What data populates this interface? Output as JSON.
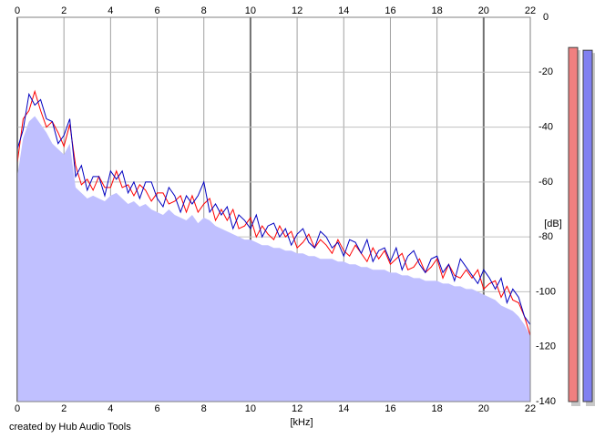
{
  "chart_data": {
    "type": "spectrum",
    "x_label": "[kHz]",
    "y_label": "[dB]",
    "credit": "created by Hub Audio Tools",
    "xlim": [
      0,
      22
    ],
    "xticks": [
      0,
      2,
      4,
      6,
      8,
      10,
      12,
      14,
      16,
      18,
      20,
      22
    ],
    "ylim": [
      -140,
      0
    ],
    "yticks": [
      0,
      -20,
      -40,
      -60,
      -80,
      -100,
      -120,
      -140
    ],
    "grid": true,
    "x": [
      0,
      0.25,
      0.5,
      0.75,
      1,
      1.25,
      1.5,
      1.75,
      2,
      2.25,
      2.5,
      2.75,
      3,
      3.25,
      3.5,
      3.75,
      4,
      4.25,
      4.5,
      4.75,
      5,
      5.25,
      5.5,
      5.75,
      6,
      6.25,
      6.5,
      6.75,
      7,
      7.25,
      7.5,
      7.75,
      8,
      8.25,
      8.5,
      8.75,
      9,
      9.25,
      9.5,
      9.75,
      10,
      10.25,
      10.5,
      10.75,
      11,
      11.25,
      11.5,
      11.75,
      12,
      12.25,
      12.5,
      12.75,
      13,
      13.25,
      13.5,
      13.75,
      14,
      14.25,
      14.5,
      14.75,
      15,
      15.25,
      15.5,
      15.75,
      16,
      16.25,
      16.5,
      16.75,
      17,
      17.25,
      17.5,
      17.75,
      18,
      18.25,
      18.5,
      18.75,
      19,
      19.25,
      19.5,
      19.75,
      20,
      20.25,
      20.5,
      20.75,
      21,
      21.25,
      21.5,
      21.75,
      22
    ],
    "series": [
      {
        "color": "#c0c0ff",
        "fill": true,
        "values": [
          -58,
          -44,
          -38,
          -36,
          -39,
          -42,
          -46,
          -48,
          -50,
          -46,
          -62,
          -64,
          -66,
          -65,
          -66,
          -67,
          -65,
          -64,
          -66,
          -68,
          -67,
          -69,
          -68,
          -70,
          -71,
          -72,
          -70,
          -72,
          -73,
          -74,
          -72,
          -75,
          -73,
          -74,
          -76,
          -77,
          -78,
          -79,
          -80,
          -81,
          -81,
          -82,
          -83,
          -83,
          -84,
          -84,
          -85,
          -85,
          -86,
          -86,
          -87,
          -87,
          -88,
          -88,
          -88,
          -89,
          -89,
          -90,
          -90,
          -91,
          -91,
          -92,
          -92,
          -92,
          -93,
          -93,
          -94,
          -94,
          -95,
          -95,
          -96,
          -96,
          -96,
          -97,
          -97,
          -98,
          -98,
          -99,
          -99,
          -100,
          -101,
          -102,
          -103,
          -105,
          -106,
          -107,
          -109,
          -112,
          -116
        ]
      },
      {
        "color": "#ff0000",
        "values": [
          -53,
          -37,
          -34,
          -27,
          -34,
          -40,
          -38,
          -42,
          -47,
          -39,
          -54,
          -61,
          -59,
          -63,
          -58,
          -62,
          -62,
          -56,
          -62,
          -61,
          -65,
          -61,
          -63,
          -67,
          -64,
          -64,
          -68,
          -67,
          -65,
          -71,
          -65,
          -71,
          -68,
          -66,
          -74,
          -70,
          -74,
          -70,
          -77,
          -76,
          -73,
          -80,
          -76,
          -79,
          -81,
          -76,
          -80,
          -78,
          -84,
          -82,
          -79,
          -84,
          -81,
          -83,
          -86,
          -81,
          -85,
          -87,
          -83,
          -86,
          -89,
          -84,
          -88,
          -85,
          -90,
          -88,
          -86,
          -92,
          -91,
          -88,
          -93,
          -91,
          -88,
          -95,
          -90,
          -94,
          -95,
          -92,
          -95,
          -92,
          -99,
          -97,
          -96,
          -102,
          -98,
          -103,
          -104,
          -109,
          -116
        ]
      },
      {
        "color": "#0000c0",
        "values": [
          -48,
          -41,
          -28,
          -32,
          -30,
          -37,
          -38,
          -46,
          -43,
          -37,
          -58,
          -54,
          -63,
          -58,
          -58,
          -65,
          -56,
          -59,
          -56,
          -64,
          -60,
          -66,
          -60,
          -60,
          -66,
          -69,
          -62,
          -65,
          -71,
          -65,
          -68,
          -65,
          -60,
          -71,
          -68,
          -72,
          -69,
          -77,
          -72,
          -74,
          -77,
          -72,
          -80,
          -76,
          -75,
          -80,
          -77,
          -83,
          -79,
          -77,
          -82,
          -84,
          -78,
          -80,
          -84,
          -82,
          -87,
          -81,
          -82,
          -86,
          -81,
          -89,
          -85,
          -84,
          -89,
          -84,
          -92,
          -87,
          -85,
          -90,
          -93,
          -88,
          -87,
          -93,
          -90,
          -96,
          -88,
          -91,
          -94,
          -97,
          -92,
          -95,
          -99,
          -95,
          -104,
          -99,
          -102,
          -109,
          -112
        ]
      }
    ],
    "meters": [
      {
        "color": "#f08080",
        "value": -11
      },
      {
        "color": "#8080f0",
        "value": -12
      }
    ]
  }
}
